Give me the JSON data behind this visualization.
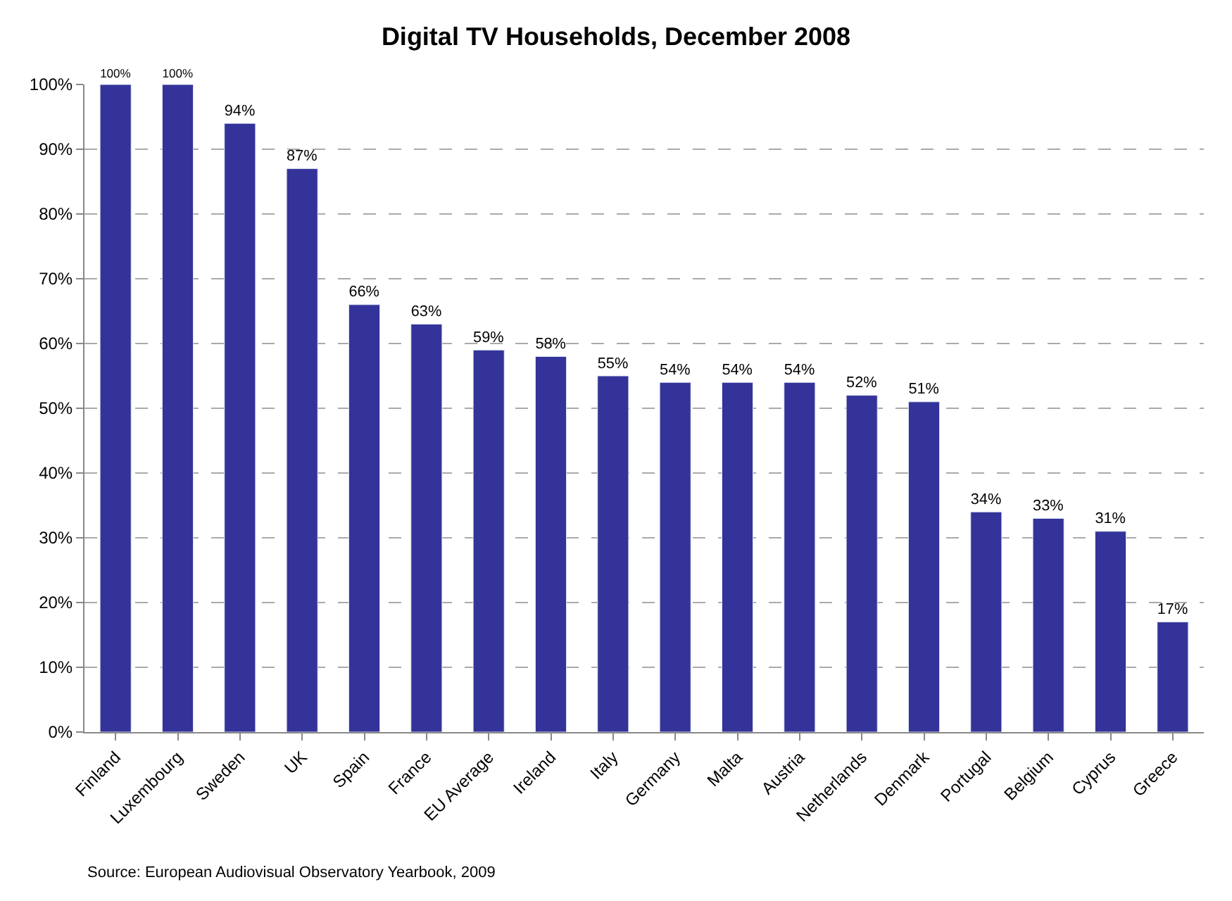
{
  "chart_data": {
    "type": "bar",
    "title": "Digital TV Households, December 2008",
    "categories": [
      "Finland",
      "Luxembourg",
      "Sweden",
      "UK",
      "Spain",
      "France",
      "EU Average",
      "Ireland",
      "Italy",
      "Germany",
      "Malta",
      "Austria",
      "Netherlands",
      "Denmark",
      "Portugal",
      "Belgium",
      "Cyprus",
      "Greece"
    ],
    "values": [
      100,
      100,
      94,
      87,
      66,
      63,
      59,
      58,
      55,
      54,
      54,
      54,
      52,
      51,
      34,
      33,
      31,
      17
    ],
    "value_labels": [
      "100%",
      "100%",
      "94%",
      "87%",
      "66%",
      "63%",
      "59%",
      "58%",
      "55%",
      "54%",
      "54%",
      "54%",
      "52%",
      "51%",
      "34%",
      "33%",
      "31%",
      "17%"
    ],
    "color": "#333399",
    "ylim": [
      0,
      100
    ],
    "yticks": [
      {
        "value": 0,
        "label": "0%"
      },
      {
        "value": 10,
        "label": "10%"
      },
      {
        "value": 20,
        "label": "20%"
      },
      {
        "value": 30,
        "label": "30%"
      },
      {
        "value": 40,
        "label": "40%"
      },
      {
        "value": 50,
        "label": "50%"
      },
      {
        "value": 60,
        "label": "60%"
      },
      {
        "value": 70,
        "label": "70%"
      },
      {
        "value": 80,
        "label": "80%"
      },
      {
        "value": 90,
        "label": "90%"
      },
      {
        "value": 100,
        "label": "100%"
      }
    ],
    "grid": "y",
    "annotations": [
      "Source: European Audiovisual Observatory Yearbook, 2009"
    ]
  }
}
